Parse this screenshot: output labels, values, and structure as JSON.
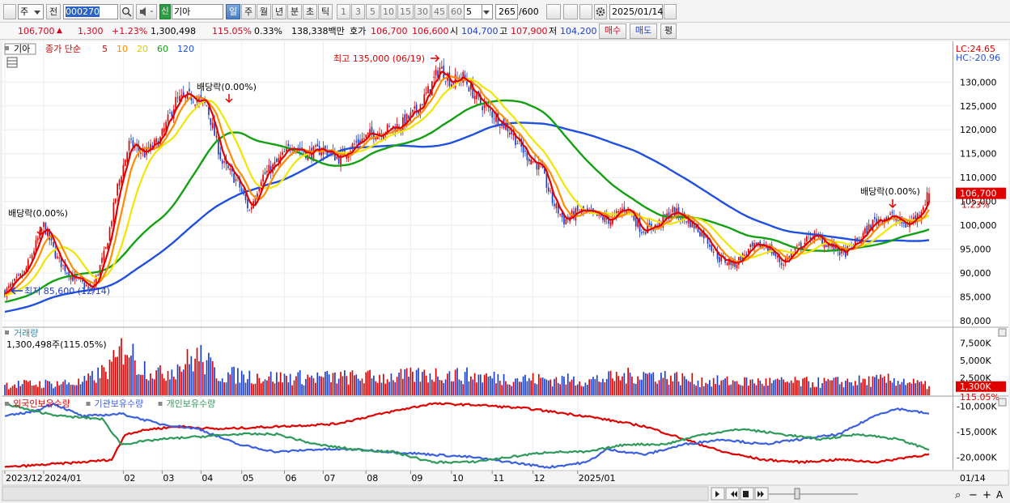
{
  "toolbar": {
    "market_prefix": "주",
    "prev_label": "전",
    "code": "000270",
    "stock_tag": "신",
    "stock_name": "기아",
    "periods": [
      "일",
      "주",
      "월",
      "년",
      "분",
      "초",
      "틱"
    ],
    "active_period": "일",
    "intervals": [
      "1",
      "3",
      "5",
      "10",
      "15",
      "30",
      "45",
      "60"
    ],
    "interval_value": "5",
    "count": "265",
    "count_total": "/600",
    "date": "2025/01/14"
  },
  "quote": {
    "price": "106,700",
    "change": "1,300",
    "change_pct": "+1.23%",
    "volume": "1,300,498",
    "volume_ratio": "115.05%",
    "turnover_pct": "0.33%",
    "amount": "138,338백만",
    "bid_label": "호가",
    "ask": "106,700",
    "bid": "106,600",
    "open_label": "시",
    "open": "104,700",
    "high_label": "고",
    "high": "107,900",
    "low_label": "저",
    "low": "104,200",
    "buy_label": "매수",
    "sell_label": "매도",
    "eval_label": "평"
  },
  "legend": {
    "stock": "기아",
    "ma_label": "종가 단순",
    "ma_periods": [
      {
        "label": "5",
        "color": "#e00000"
      },
      {
        "label": "10",
        "color": "#ff8c00"
      },
      {
        "label": "20",
        "color": "#f2e600"
      },
      {
        "label": "60",
        "color": "#13a013"
      },
      {
        "label": "120",
        "color": "#2050e0"
      }
    ],
    "lc": "LC:24.65",
    "hc": "HC:-20.96"
  },
  "annotations": {
    "max": "최고 135,000 (06/19)",
    "min": "최저 85,600 (12/14)",
    "dividend1": "배당락(0.00%)",
    "dividend2": "배당락(0.00%)",
    "dividend3": "배당락(0.00%)"
  },
  "volume_panel": {
    "title": "거래량",
    "value": "1,300,498주(115.05%)",
    "badge": "1,300K",
    "badge_pct": "115.05%",
    "axis": [
      "7,500K",
      "5,000K",
      "2,500K"
    ]
  },
  "holdings_panel": {
    "series": [
      {
        "name": "외국인보유수량",
        "color": "#e00000"
      },
      {
        "name": "기관보유수량",
        "color": "#3a5fe0"
      },
      {
        "name": "개인보유수량",
        "color": "#2e9a5a"
      }
    ],
    "axis": [
      "-10,000K",
      "-15,000K",
      "-20,000K"
    ]
  },
  "price_badge": {
    "value": "106,700",
    "pct": "1.23%"
  },
  "x_axis": {
    "labels": [
      "2023/12",
      "2024/01",
      "02",
      "03",
      "04",
      "05",
      "06",
      "07",
      "08",
      "09",
      "10",
      "11",
      "12",
      "2025/01"
    ],
    "right_label": "01/14"
  },
  "colors": {
    "up": "#e00000",
    "down": "#1a3fcc",
    "grid": "#e8e8e8"
  },
  "chart_data": {
    "type": "candlestick",
    "y_price_axis": {
      "ticks": [
        80000,
        85000,
        90000,
        95000,
        100000,
        105000,
        110000,
        115000,
        120000,
        125000,
        130000
      ]
    },
    "y_price_labels": [
      "130,000",
      "125,000",
      "120,000",
      "115,000",
      "110,000",
      "105,000",
      "100,000",
      "95,000",
      "90,000",
      "85,000",
      "80,000"
    ],
    "ylim": [
      79000,
      137000
    ],
    "x_months": [
      "2023/12",
      "2024/01",
      "02",
      "03",
      "04",
      "05",
      "06",
      "07",
      "08",
      "09",
      "10",
      "11",
      "12",
      "2025/01"
    ],
    "close_anchors": [
      [
        0,
        86000
      ],
      [
        10,
        90000
      ],
      [
        20,
        100000
      ],
      [
        27,
        93000
      ],
      [
        35,
        89000
      ],
      [
        45,
        86500
      ],
      [
        52,
        95000
      ],
      [
        58,
        108000
      ],
      [
        64,
        117000
      ],
      [
        72,
        115000
      ],
      [
        80,
        118000
      ],
      [
        88,
        126000
      ],
      [
        96,
        127000
      ],
      [
        104,
        125000
      ],
      [
        112,
        113000
      ],
      [
        120,
        109000
      ],
      [
        126,
        103000
      ],
      [
        132,
        110000
      ],
      [
        140,
        113000
      ],
      [
        148,
        117000
      ],
      [
        156,
        115000
      ],
      [
        164,
        116000
      ],
      [
        172,
        114000
      ],
      [
        180,
        117000
      ],
      [
        188,
        119000
      ],
      [
        196,
        120000
      ],
      [
        204,
        121000
      ],
      [
        212,
        124000
      ],
      [
        218,
        128000
      ],
      [
        224,
        133000
      ],
      [
        230,
        130000
      ],
      [
        236,
        131000
      ],
      [
        244,
        126000
      ],
      [
        252,
        123000
      ],
      [
        260,
        120000
      ],
      [
        268,
        115000
      ],
      [
        276,
        112000
      ],
      [
        282,
        105000
      ],
      [
        288,
        101000
      ],
      [
        296,
        103000
      ],
      [
        304,
        102000
      ],
      [
        312,
        101000
      ],
      [
        320,
        104000
      ],
      [
        328,
        99000
      ],
      [
        336,
        100000
      ],
      [
        344,
        103000
      ],
      [
        352,
        101000
      ],
      [
        360,
        98000
      ],
      [
        368,
        93000
      ],
      [
        376,
        92000
      ],
      [
        384,
        95000
      ],
      [
        392,
        96000
      ],
      [
        400,
        92000
      ],
      [
        408,
        95000
      ],
      [
        416,
        98000
      ],
      [
        424,
        96000
      ],
      [
        432,
        94000
      ],
      [
        440,
        97000
      ],
      [
        448,
        101000
      ],
      [
        456,
        102000
      ],
      [
        464,
        100000
      ],
      [
        470,
        102000
      ],
      [
        476,
        106700
      ]
    ],
    "volume_anchors": [
      [
        0,
        1500
      ],
      [
        40,
        1800
      ],
      [
        52,
        3500
      ],
      [
        58,
        5000
      ],
      [
        62,
        7800
      ],
      [
        68,
        4500
      ],
      [
        80,
        3000
      ],
      [
        92,
        4500
      ],
      [
        100,
        5600
      ],
      [
        110,
        3000
      ],
      [
        140,
        2500
      ],
      [
        200,
        2600
      ],
      [
        224,
        3000
      ],
      [
        260,
        2400
      ],
      [
        300,
        2100
      ],
      [
        330,
        3000
      ],
      [
        360,
        2000
      ],
      [
        420,
        1800
      ],
      [
        460,
        2200
      ],
      [
        476,
        1300
      ]
    ],
    "volume_ylim": [
      0,
      9500
    ],
    "holdings_ylim": [
      -22500,
      -8500
    ],
    "holdings": {
      "foreign": [
        [
          0,
          -22000
        ],
        [
          20,
          -21500
        ],
        [
          40,
          -21000
        ],
        [
          55,
          -20500
        ],
        [
          62,
          -15500
        ],
        [
          75,
          -14500
        ],
        [
          90,
          -14000
        ],
        [
          110,
          -14500
        ],
        [
          140,
          -14000
        ],
        [
          170,
          -13500
        ],
        [
          200,
          -11000
        ],
        [
          220,
          -9500
        ],
        [
          245,
          -9800
        ],
        [
          270,
          -10500
        ],
        [
          300,
          -12000
        ],
        [
          330,
          -14000
        ],
        [
          350,
          -16500
        ],
        [
          370,
          -19000
        ],
        [
          390,
          -20500
        ],
        [
          410,
          -21000
        ],
        [
          430,
          -20500
        ],
        [
          450,
          -21000
        ],
        [
          465,
          -20000
        ],
        [
          476,
          -19500
        ]
      ],
      "institution": [
        [
          0,
          -12000
        ],
        [
          15,
          -11000
        ],
        [
          25,
          -9500
        ],
        [
          40,
          -12000
        ],
        [
          60,
          -11500
        ],
        [
          80,
          -13500
        ],
        [
          100,
          -14500
        ],
        [
          120,
          -17500
        ],
        [
          140,
          -19000
        ],
        [
          160,
          -18500
        ],
        [
          180,
          -18500
        ],
        [
          200,
          -19000
        ],
        [
          220,
          -19500
        ],
        [
          240,
          -20000
        ],
        [
          260,
          -21000
        ],
        [
          280,
          -22000
        ],
        [
          300,
          -21000
        ],
        [
          310,
          -18500
        ],
        [
          330,
          -19500
        ],
        [
          350,
          -17500
        ],
        [
          370,
          -16500
        ],
        [
          390,
          -17500
        ],
        [
          410,
          -16500
        ],
        [
          430,
          -15500
        ],
        [
          450,
          -11500
        ],
        [
          460,
          -10500
        ],
        [
          476,
          -11500
        ]
      ],
      "individual": [
        [
          0,
          -9500
        ],
        [
          15,
          -11000
        ],
        [
          30,
          -12000
        ],
        [
          50,
          -12500
        ],
        [
          60,
          -17500
        ],
        [
          80,
          -16500
        ],
        [
          100,
          -16000
        ],
        [
          120,
          -15500
        ],
        [
          140,
          -15500
        ],
        [
          160,
          -17500
        ],
        [
          180,
          -18500
        ],
        [
          200,
          -19000
        ],
        [
          220,
          -21000
        ],
        [
          240,
          -21000
        ],
        [
          260,
          -20000
        ],
        [
          280,
          -19000
        ],
        [
          300,
          -19000
        ],
        [
          320,
          -17500
        ],
        [
          340,
          -17500
        ],
        [
          360,
          -15500
        ],
        [
          380,
          -14500
        ],
        [
          400,
          -15500
        ],
        [
          420,
          -16500
        ],
        [
          440,
          -15500
        ],
        [
          460,
          -16500
        ],
        [
          476,
          -18500
        ]
      ]
    }
  }
}
